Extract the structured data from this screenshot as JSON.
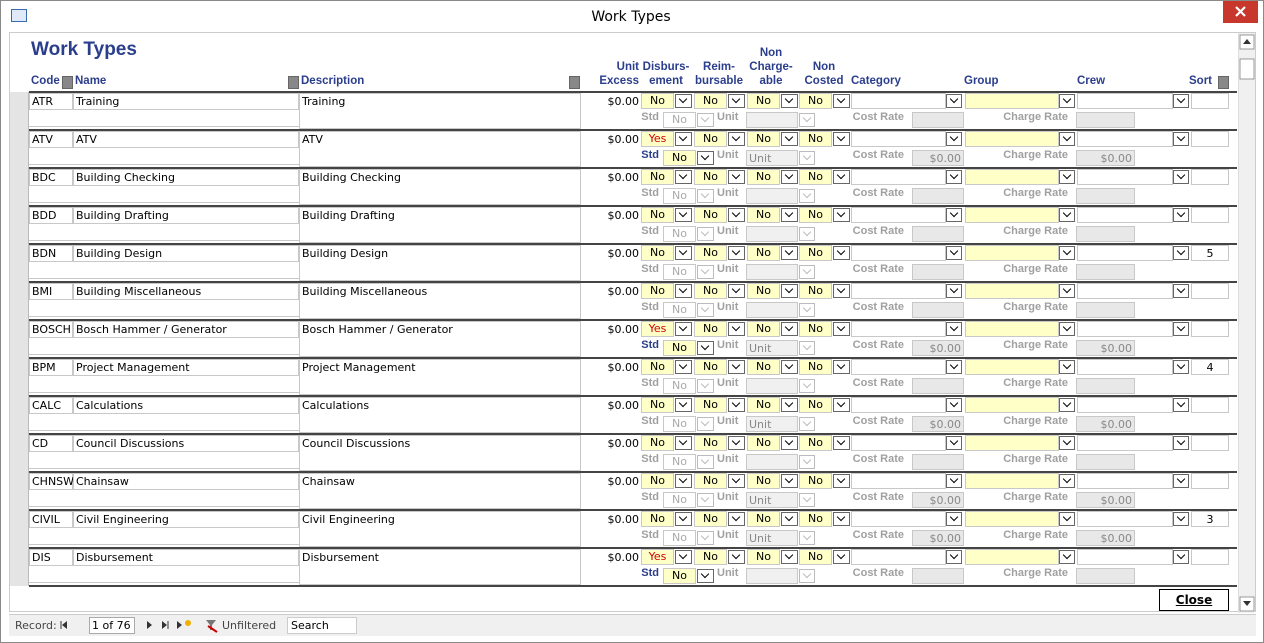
{
  "window": {
    "title": "Work Types"
  },
  "form": {
    "title": "Work Types",
    "columns": {
      "code": [
        "Code"
      ],
      "name": [
        "Name"
      ],
      "description": [
        "Description"
      ],
      "unit_excess": [
        "Unit",
        "Excess"
      ],
      "disbursement": [
        "Disburs-",
        "ement"
      ],
      "reimbursable": [
        "Reim-",
        "bursable"
      ],
      "non_chargeable": [
        "Non",
        "Charge-",
        "able"
      ],
      "non_costed": [
        "Non",
        "Costed"
      ],
      "category": [
        "Category"
      ],
      "group": [
        "Group"
      ],
      "crew": [
        "Crew"
      ],
      "sort": [
        "Sort"
      ]
    },
    "sub_labels": {
      "std": "Std",
      "unit": "Unit",
      "cost_rate": "Cost Rate",
      "charge_rate": "Charge Rate"
    },
    "rows": [
      {
        "code": "ATR",
        "name": "Training",
        "description": "Training",
        "unit_excess": "$0.00",
        "disbursement": "No",
        "reimbursable": "No",
        "non_chargeable": "No",
        "non_costed": "No",
        "std": "No"
      },
      {
        "code": "ATV",
        "name": "ATV",
        "description": "ATV",
        "unit_excess": "$0.00",
        "disbursement": "Yes",
        "reimbursable": "No",
        "non_chargeable": "No",
        "non_costed": "No",
        "std": "No",
        "unit": "Unit",
        "cost_rate": "$0.00",
        "charge_rate": "$0.00"
      },
      {
        "code": "BDC",
        "name": "Building Checking",
        "description": "Building Checking",
        "unit_excess": "$0.00",
        "disbursement": "No",
        "reimbursable": "No",
        "non_chargeable": "No",
        "non_costed": "No",
        "std": "No"
      },
      {
        "code": "BDD",
        "name": "Building Drafting",
        "description": "Building Drafting",
        "unit_excess": "$0.00",
        "disbursement": "No",
        "reimbursable": "No",
        "non_chargeable": "No",
        "non_costed": "No",
        "std": "No"
      },
      {
        "code": "BDN",
        "name": "Building Design",
        "description": "Building Design",
        "unit_excess": "$0.00",
        "disbursement": "No",
        "reimbursable": "No",
        "non_chargeable": "No",
        "non_costed": "No",
        "std": "No",
        "sort": 5
      },
      {
        "code": "BMI",
        "name": "Building Miscellaneous",
        "description": "Building Miscellaneous",
        "unit_excess": "$0.00",
        "disbursement": "No",
        "reimbursable": "No",
        "non_chargeable": "No",
        "non_costed": "No",
        "std": "No"
      },
      {
        "code": "BOSCH",
        "name": "Bosch Hammer / Generator",
        "description": "Bosch Hammer / Generator",
        "unit_excess": "$0.00",
        "disbursement": "Yes",
        "reimbursable": "No",
        "non_chargeable": "No",
        "non_costed": "No",
        "std": "No",
        "unit": "Unit",
        "cost_rate": "$0.00",
        "charge_rate": "$0.00"
      },
      {
        "code": "BPM",
        "name": "Project Management",
        "description": "Project Management",
        "unit_excess": "$0.00",
        "disbursement": "No",
        "reimbursable": "No",
        "non_chargeable": "No",
        "non_costed": "No",
        "std": "No",
        "sort": 4
      },
      {
        "code": "CALC",
        "name": "Calculations",
        "description": "Calculations",
        "unit_excess": "$0.00",
        "disbursement": "No",
        "reimbursable": "No",
        "non_chargeable": "No",
        "non_costed": "No",
        "std": "No",
        "unit": "Unit",
        "cost_rate": "$0.00",
        "charge_rate": "$0.00"
      },
      {
        "code": "CD",
        "name": "Council Discussions",
        "description": "Council Discussions",
        "unit_excess": "$0.00",
        "disbursement": "No",
        "reimbursable": "No",
        "non_chargeable": "No",
        "non_costed": "No",
        "std": "No"
      },
      {
        "code": "CHNSW",
        "name": "Chainsaw",
        "description": "Chainsaw",
        "unit_excess": "$0.00",
        "disbursement": "No",
        "reimbursable": "No",
        "non_chargeable": "No",
        "non_costed": "No",
        "std": "No",
        "unit": "Unit",
        "cost_rate": "$0.00",
        "charge_rate": "$0.00"
      },
      {
        "code": "CIVIL",
        "name": "Civil Engineering",
        "description": "Civil Engineering",
        "unit_excess": "$0.00",
        "disbursement": "No",
        "reimbursable": "No",
        "non_chargeable": "No",
        "non_costed": "No",
        "std": "No",
        "sort": 3,
        "unit": "Unit",
        "cost_rate": "$0.00",
        "charge_rate": "$0.00"
      },
      {
        "code": "DIS",
        "name": "Disbursement",
        "description": "Disbursement",
        "unit_excess": "$0.00",
        "disbursement": "Yes",
        "reimbursable": "No",
        "non_chargeable": "No",
        "non_costed": "No",
        "std": "No"
      }
    ],
    "close_button": "Close"
  },
  "navigation": {
    "record_label": "Record:",
    "position": "1 of 76",
    "filter": "Unfiltered",
    "search": "Search"
  }
}
